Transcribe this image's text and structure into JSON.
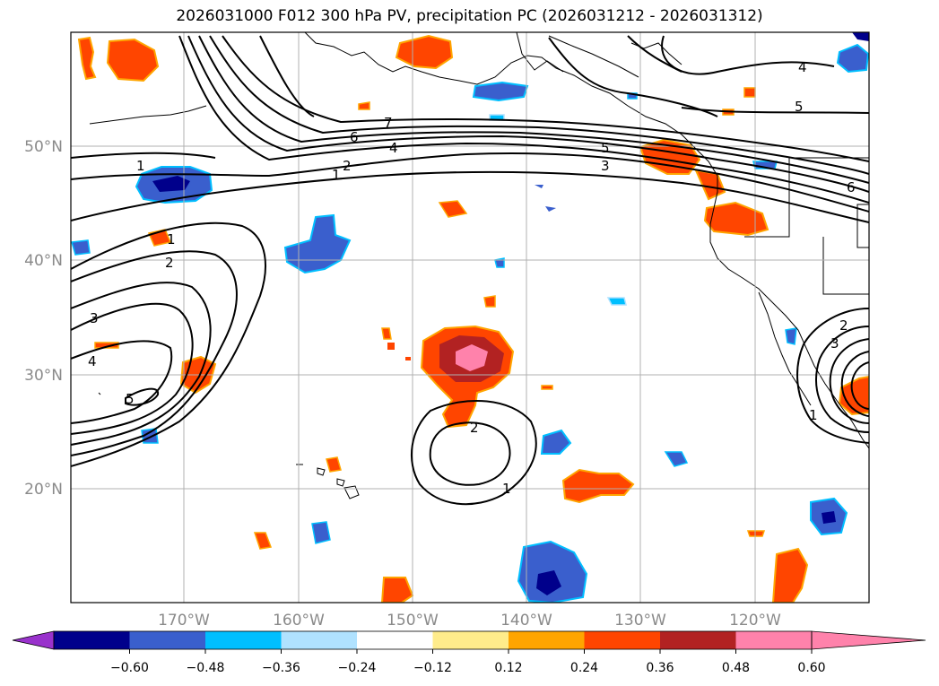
{
  "title": "2026031000 F012 300 hPa PV, precipitation PC (2026031212 - 2026031312)",
  "map": {
    "lat_labels": [
      "50°N",
      "40°N",
      "30°N",
      "20°N"
    ],
    "lat_values": [
      50,
      40,
      30,
      20
    ],
    "lon_labels": [
      "170°W",
      "160°W",
      "150°W",
      "140°W",
      "130°W",
      "120°W"
    ],
    "lon_values": [
      -170,
      -160,
      -150,
      -140,
      -130,
      -120
    ],
    "extent": {
      "lon_min": -180,
      "lon_max": -110,
      "lat_min": 10,
      "lat_max": 60
    }
  },
  "pv_contour_labels": {
    "north_jet": [
      "1",
      "2",
      "1",
      "6",
      "4",
      "7",
      "5",
      "3",
      "6",
      "4",
      "5"
    ],
    "western_ridge": [
      "1",
      "2",
      "3",
      "4",
      "5"
    ],
    "central_low": [
      "2",
      "1"
    ],
    "eastern_low": [
      "2",
      "3",
      "1"
    ]
  },
  "colorbar": {
    "ticks": [
      "−0.60",
      "−0.48",
      "−0.36",
      "−0.24",
      "−0.12",
      "0.12",
      "0.24",
      "0.36",
      "0.48",
      "0.60"
    ],
    "colors": [
      "#9932cc",
      "#00008b",
      "#3a5fcd",
      "#00bfff",
      "#b0e2ff",
      "#ffffff",
      "#ffec8b",
      "#ffa500",
      "#ff4500",
      "#b22222",
      "#ff82ab"
    ],
    "extend": "both"
  }
}
